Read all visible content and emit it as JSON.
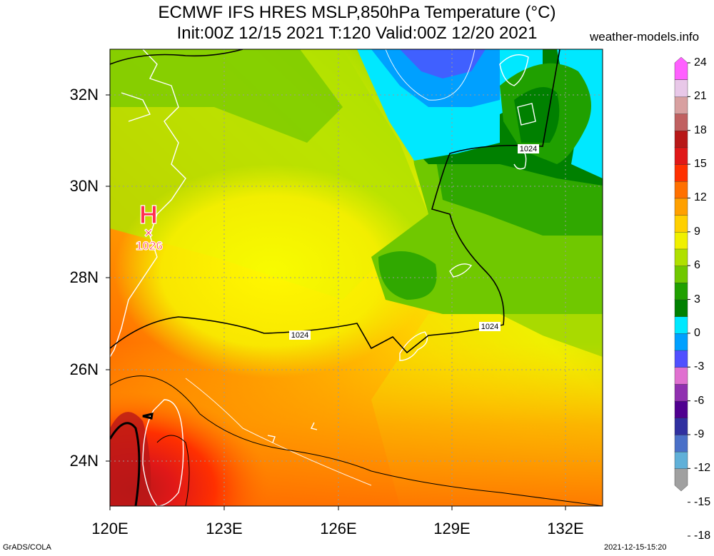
{
  "header": {
    "title_line1": "ECMWF IFS HRES MSLP,850hPa Temperature (°C)",
    "title_line2": "Init:00Z 12/15 2021 T:120 Valid:00Z 12/20 2021",
    "site": "weather-models.info"
  },
  "axes": {
    "lat_labels": [
      "32N",
      "30N",
      "28N",
      "26N",
      "24N"
    ],
    "lon_labels": [
      "120E",
      "123E",
      "126E",
      "129E",
      "132E"
    ]
  },
  "colorbar": {
    "labels": [
      "24",
      "21",
      "18",
      "15",
      "12",
      "9",
      "6",
      "3",
      "0",
      "-3",
      "-6",
      "-9",
      "-12",
      "-15",
      "-18"
    ],
    "colors": [
      "#a0a0a0",
      "#60b0d8",
      "#4a70c8",
      "#3030a0",
      "#500090",
      "#9030b0",
      "#e070d0",
      "#5050ff",
      "#00a0ff",
      "#00e8ff",
      "#008000",
      "#20a000",
      "#70c800",
      "#b0e000",
      "#f0f000",
      "#ffd000",
      "#ffa000",
      "#ff7000",
      "#ff3000",
      "#e01818",
      "#b81818",
      "#c06060",
      "#d8a0a0",
      "#e8c8e8",
      "#ff60ff"
    ]
  },
  "map": {
    "high_symbol": "H",
    "high_marker": "×",
    "high_value": "1026",
    "isobar_labels": [
      "1024",
      "1024",
      "1024"
    ]
  },
  "footer": {
    "left": "GrADS/COLA",
    "right": "2021-12-15-15:20"
  }
}
